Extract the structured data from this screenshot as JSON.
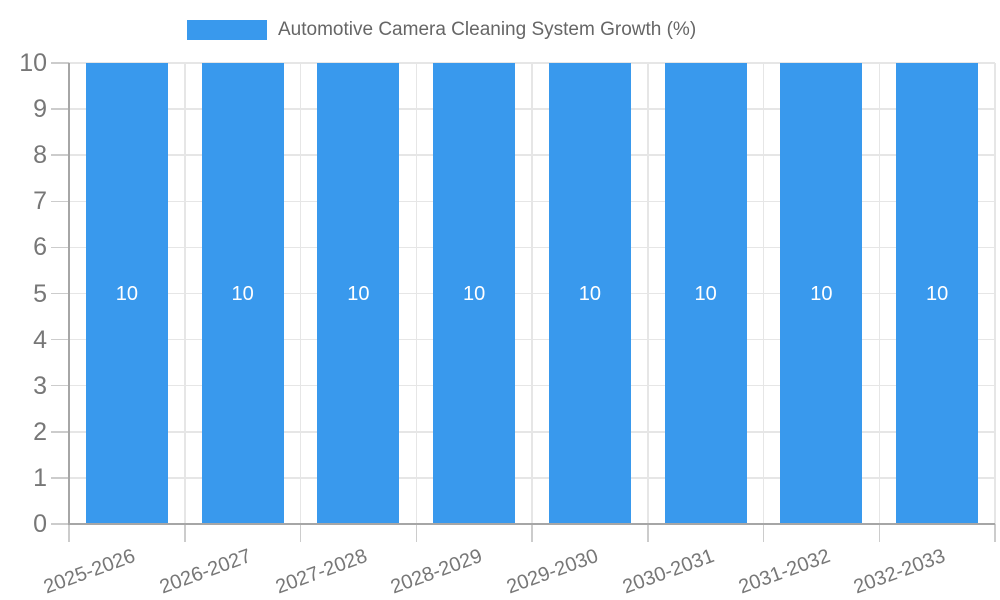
{
  "legend": {
    "label": "Automotive Camera Cleaning System Growth (%)"
  },
  "chart_data": {
    "type": "bar",
    "title": "Automotive Camera Cleaning System Growth (%)",
    "categories": [
      "2025-2026",
      "2026-2027",
      "2027-2028",
      "2028-2029",
      "2029-2030",
      "2030-2031",
      "2031-2032",
      "2032-2033"
    ],
    "values": [
      10,
      10,
      10,
      10,
      10,
      10,
      10,
      10
    ],
    "value_labels": [
      "10",
      "10",
      "10",
      "10",
      "10",
      "10",
      "10",
      "10"
    ],
    "xlabel": "",
    "ylabel": "",
    "ylim": [
      0,
      10
    ],
    "yticks": [
      0,
      1,
      2,
      3,
      4,
      5,
      6,
      7,
      8,
      9,
      10
    ],
    "grid": true,
    "legend_position": "top-center",
    "x_label_rotation_deg": -20,
    "colors": {
      "bar": "#3999ed",
      "value_label": "#ffffff",
      "axis_line": "#a6a6a6",
      "grid_line": "#e6e6e6",
      "tick_mark": "#cccccc",
      "tick_label": "#777777",
      "legend_text": "#666666"
    }
  }
}
